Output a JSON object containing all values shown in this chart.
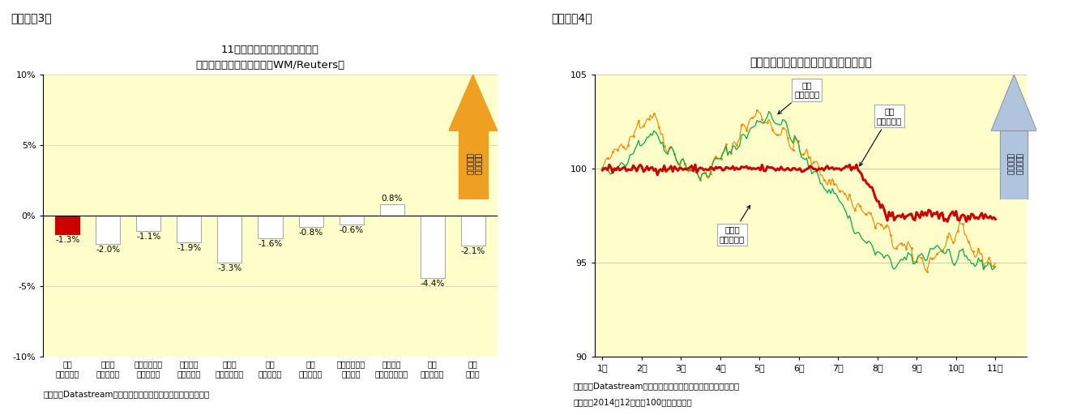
{
  "fig3": {
    "title": "11月の主要新興国通貨の変化率",
    "subtitle": "（対米国ドル、前月末比、WM/Reuters）",
    "categories": [
      "中国\n（人民元）",
      "インド\n（ルピー）",
      "インドネシア\n（ルピア）",
      "ブラジル\n（レアル）",
      "ロシア\n（ルーブル）",
      "韓国\n（ウォン）",
      "タイ\n（バーツ）",
      "シンガポール\n（ドル）",
      "マーシア\n（リンギット）",
      "欧州\n（ユーロ）",
      "日本\n（円）"
    ],
    "values": [
      -1.3,
      -2.0,
      -1.1,
      -1.9,
      -3.3,
      -1.6,
      -0.8,
      -0.6,
      0.8,
      -4.4,
      -2.1
    ],
    "bar_colors": [
      "#cc0000",
      "#ffffff",
      "#ffffff",
      "#ffffff",
      "#ffffff",
      "#ffffff",
      "#ffffff",
      "#ffffff",
      "#ffffff",
      "#ffffff",
      "#ffffff"
    ],
    "bar_edge_colors": [
      "#cc0000",
      "#aaaaaa",
      "#aaaaaa",
      "#aaaaaa",
      "#aaaaaa",
      "#aaaaaa",
      "#aaaaaa",
      "#aaaaaa",
      "#aaaaaa",
      "#aaaaaa",
      "#aaaaaa"
    ],
    "ylim": [
      -10,
      10
    ],
    "yticks": [
      -10,
      -5,
      0,
      5,
      10
    ],
    "yticklabels": [
      "-10%",
      "-5%",
      "0%",
      "5%",
      "10%"
    ],
    "background_color": "#ffffcc",
    "source_text": "（資料）Datastreamのデータを元にニッセイ基礎研究所で作成",
    "arrow_text": "自国通貨高\n（ドル安）",
    "arrow_color": "#f0a020",
    "fig_label": "（図表－3）"
  },
  "fig4": {
    "title": "アジア新興国通貨（対米国ドル）の推移",
    "xlabel_months": [
      "1月",
      "2月",
      "3月",
      "4月",
      "5月",
      "6月",
      "7月",
      "8月",
      "9月",
      "10月",
      "11月"
    ],
    "ylim": [
      90,
      105
    ],
    "yticks": [
      90,
      95,
      100,
      105
    ],
    "background_color": "#ffffcc",
    "source_text1": "（資料）Datastreamのデータを元にニッセイ基礎研究所で作成",
    "source_text2": "（注）　2014年12月末＝100として指数化",
    "arrow_text": "自国通貨高\n（ドル安）",
    "arrow_color": "#b0c4de",
    "line_colors": {
      "korea": "#ff8c00",
      "china": "#cc0000",
      "india": "#00aa44"
    },
    "label_korea": "韓国\n（ウォン）",
    "label_china": "中国\n（人民元）",
    "label_india": "インド\n（ルピー）",
    "fig_label": "（図表－4）"
  }
}
